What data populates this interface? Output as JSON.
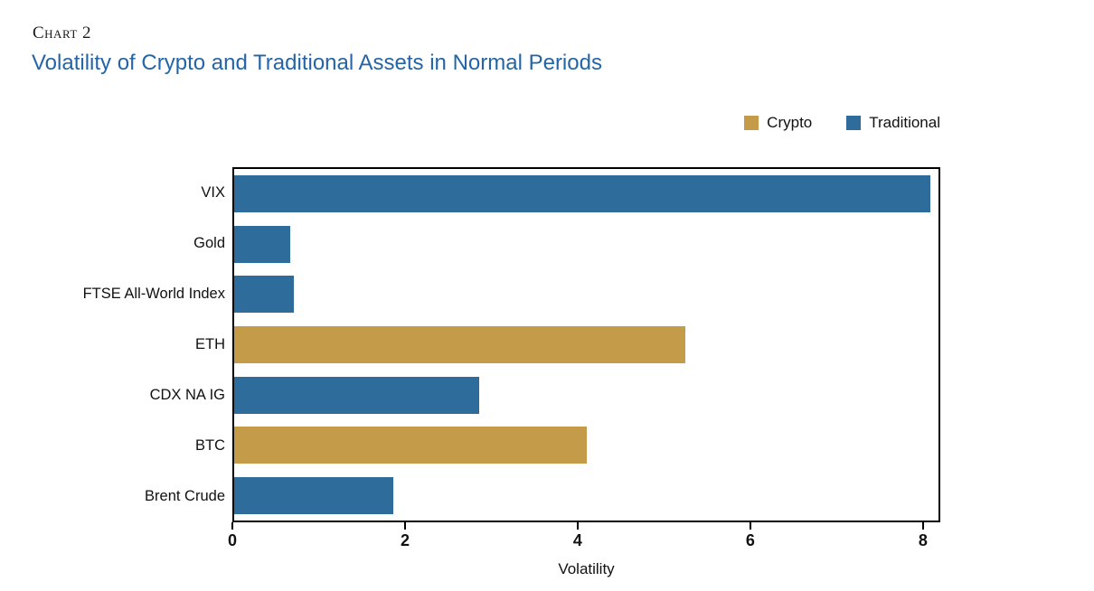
{
  "header": {
    "eyebrow": "Chart 2",
    "title": "Volatility of Crypto and Traditional Assets in Normal Periods",
    "title_color": "#2465a7"
  },
  "legend": [
    {
      "label": "Crypto",
      "color": "#c49c49"
    },
    {
      "label": "Traditional",
      "color": "#2e6c9c"
    }
  ],
  "chart_data": {
    "type": "bar",
    "orientation": "horizontal",
    "title": "Volatility of Crypto and Traditional Assets in Normal Periods",
    "xlabel": "Volatility",
    "ylabel": "",
    "xlim": [
      0,
      8.2
    ],
    "xticks": [
      0,
      2,
      4,
      6,
      8
    ],
    "grid": false,
    "legend_position": "top-right",
    "categories": [
      "VIX",
      "Gold",
      "FTSE All-World Index",
      "ETH",
      "CDX NA IG",
      "BTC",
      "Brent Crude"
    ],
    "values": [
      8.1,
      0.65,
      0.7,
      5.25,
      2.85,
      4.1,
      1.85
    ],
    "groups": [
      "Traditional",
      "Traditional",
      "Traditional",
      "Crypto",
      "Traditional",
      "Crypto",
      "Traditional"
    ]
  }
}
